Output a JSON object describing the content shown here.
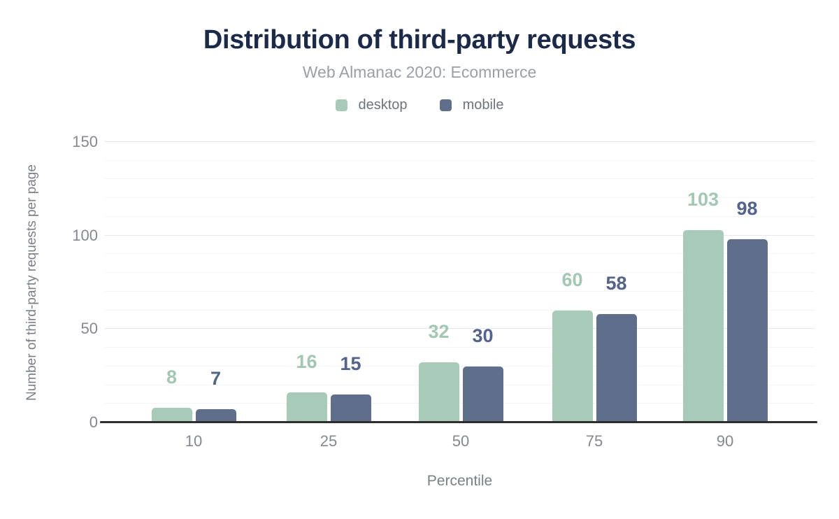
{
  "chart_data": {
    "type": "bar",
    "title": "Distribution of third-party requests",
    "subtitle": "Web Almanac 2020: Ecommerce",
    "categories": [
      "10",
      "25",
      "50",
      "75",
      "90"
    ],
    "series": [
      {
        "name": "desktop",
        "color": "#a8cab8",
        "label_color": "#a2c7b2",
        "values": [
          8,
          16,
          32,
          60,
          103
        ]
      },
      {
        "name": "mobile",
        "color": "#5f6e8a",
        "label_color": "#53638b",
        "values": [
          7,
          15,
          30,
          58,
          98
        ]
      }
    ],
    "xlabel": "Percentile",
    "ylabel": "Number of third-party requests per page",
    "ylim": [
      0,
      150
    ],
    "yticks": [
      0,
      50,
      100,
      150
    ],
    "minor_grid_step": 10,
    "grid": "horizontal",
    "legend_position": "top",
    "colors": {
      "title": "#1b2a4a",
      "subtitle": "#9aa0a6",
      "legend_label": "#6e747c",
      "tick_label": "#85898f",
      "axis_title": "#7b8087",
      "axis_line": "#2e2e2e",
      "major_grid": "#e6e9eb",
      "minor_grid": "#f3f4f5",
      "background": "#ffffff"
    }
  }
}
